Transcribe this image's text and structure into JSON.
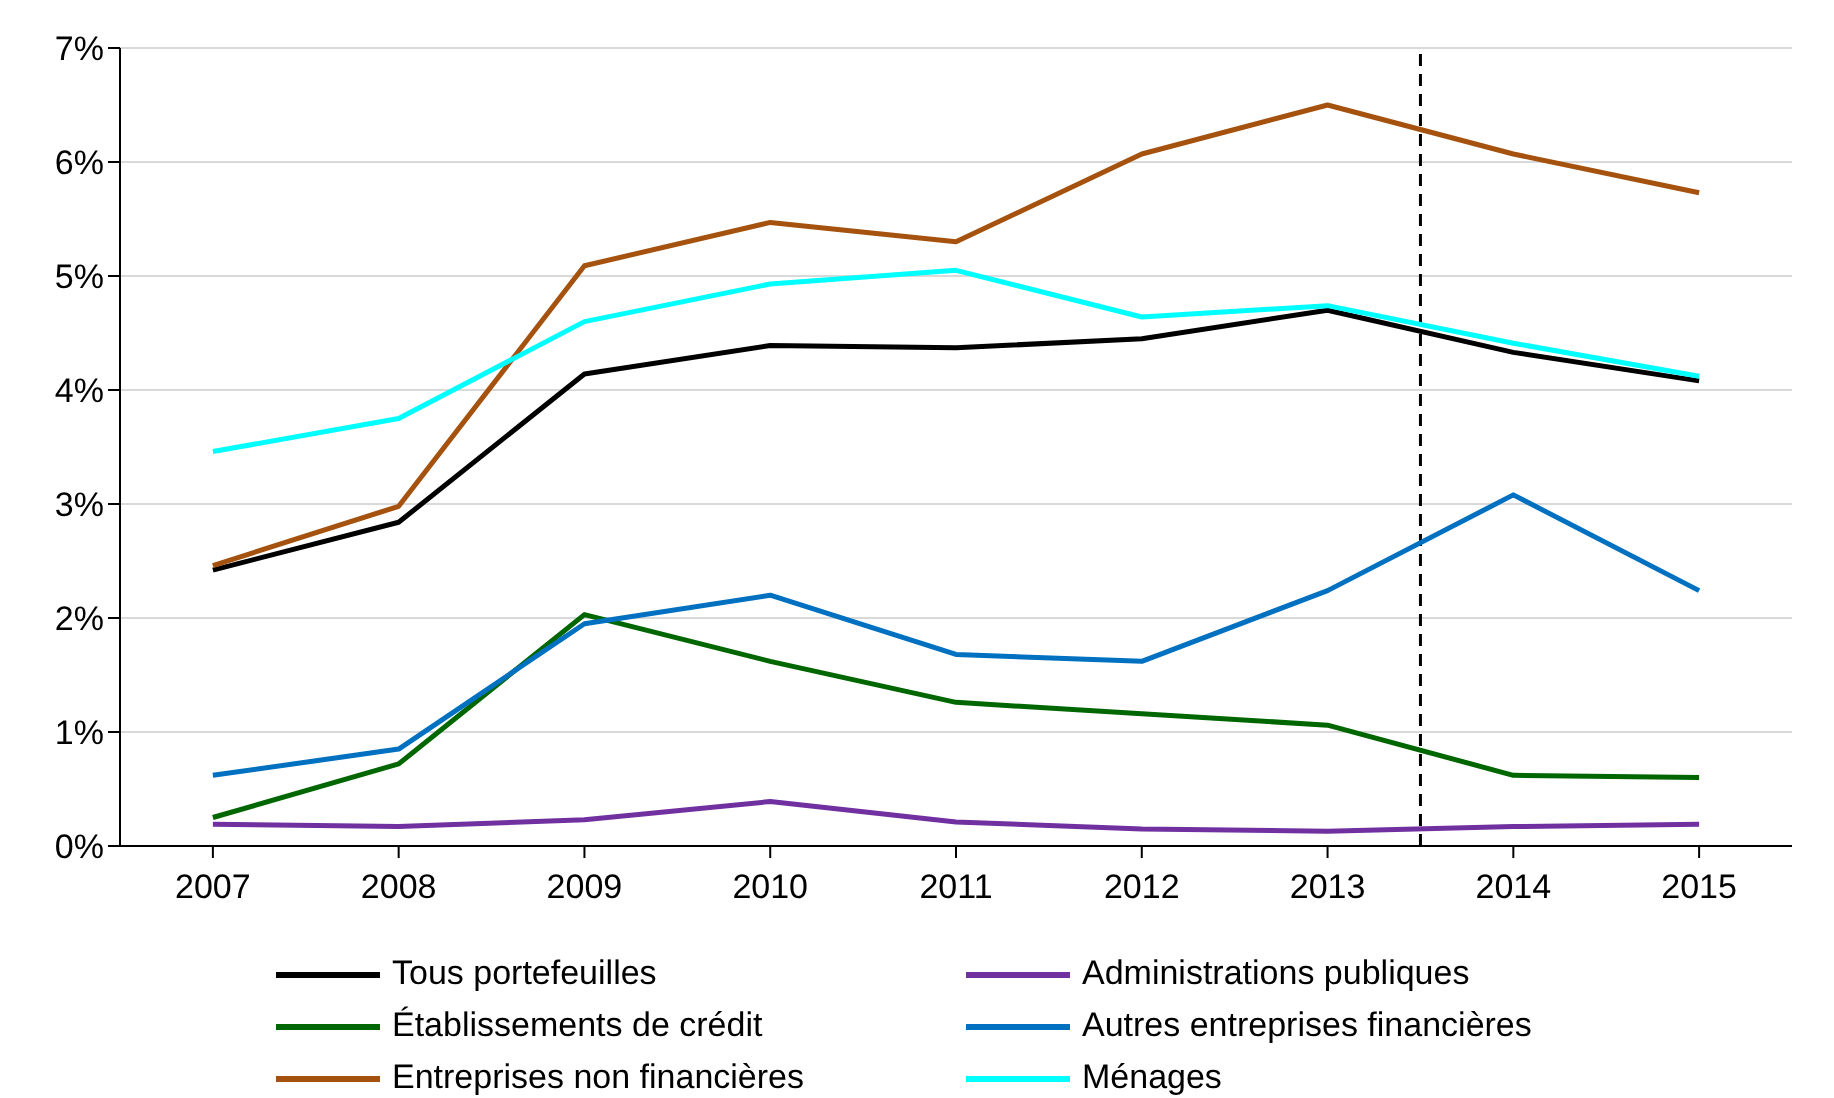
{
  "chart_data": {
    "type": "line",
    "x": [
      2007,
      2008,
      2009,
      2010,
      2011,
      2012,
      2013,
      2014,
      2015
    ],
    "xlim": [
      2006.5,
      2015.5
    ],
    "xticks": [
      2007,
      2008,
      2009,
      2010,
      2011,
      2012,
      2013,
      2014,
      2015
    ],
    "ylim": [
      0,
      7
    ],
    "yticks": [
      {
        "value": 0,
        "label": "0%"
      },
      {
        "value": 1,
        "label": "1%"
      },
      {
        "value": 2,
        "label": "2%"
      },
      {
        "value": 3,
        "label": "3%"
      },
      {
        "value": 4,
        "label": "4%"
      },
      {
        "value": 5,
        "label": "5%"
      },
      {
        "value": 6,
        "label": "6%"
      },
      {
        "value": 7,
        "label": "7%"
      }
    ],
    "grid": "y",
    "legend": "bottom",
    "marker": "none",
    "line_style": "solid",
    "ref_lines": [
      {
        "axis": "x",
        "value": 2013.5,
        "color": "#000000",
        "line_style": "dashed"
      }
    ],
    "series": [
      {
        "name": "Tous portefeuilles",
        "color": "#000000",
        "values": [
          2.42,
          2.84,
          4.14,
          4.39,
          4.37,
          4.45,
          4.7,
          4.33,
          4.08
        ]
      },
      {
        "name": "Administrations publiques",
        "color": "#7030a0",
        "values": [
          0.19,
          0.17,
          0.23,
          0.39,
          0.21,
          0.15,
          0.13,
          0.17,
          0.19
        ]
      },
      {
        "name": "Établissements de crédit",
        "color": "#006600",
        "values": [
          0.25,
          0.72,
          2.03,
          1.62,
          1.26,
          1.16,
          1.06,
          0.62,
          0.6
        ]
      },
      {
        "name": "Autres entreprises financières",
        "color": "#0070c0",
        "values": [
          0.62,
          0.85,
          1.95,
          2.2,
          1.68,
          1.62,
          2.24,
          3.08,
          2.24
        ]
      },
      {
        "name": "Entreprises non financières",
        "color": "#a5520f",
        "values": [
          2.46,
          2.98,
          5.09,
          5.47,
          5.3,
          6.07,
          6.5,
          6.07,
          5.73
        ]
      },
      {
        "name": "Ménages",
        "color": "#00ffff",
        "values": [
          3.46,
          3.75,
          4.6,
          4.93,
          5.05,
          4.64,
          4.74,
          4.41,
          4.12
        ]
      }
    ]
  }
}
